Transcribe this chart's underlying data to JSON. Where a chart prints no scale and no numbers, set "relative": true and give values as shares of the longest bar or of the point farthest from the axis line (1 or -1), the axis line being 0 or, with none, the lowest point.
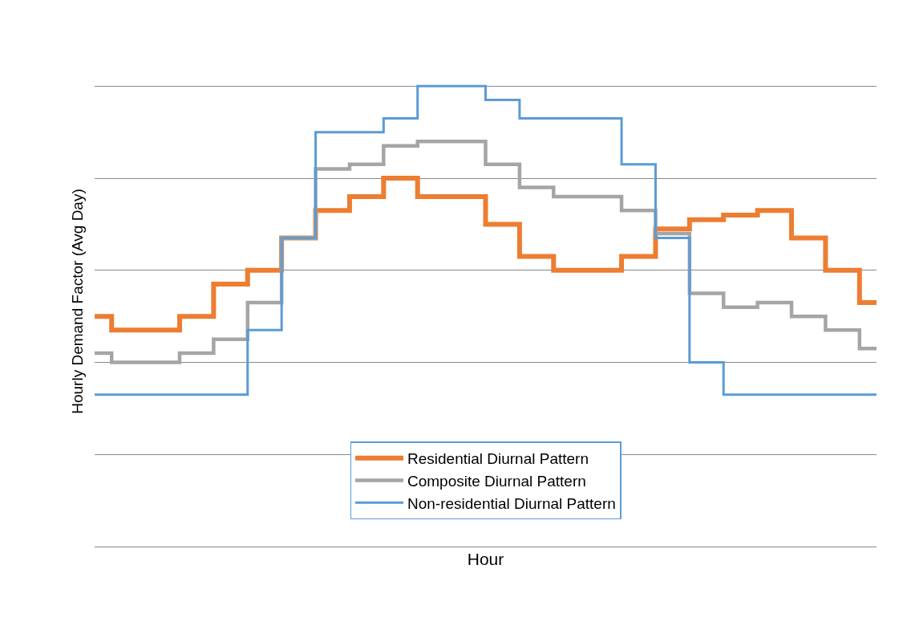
{
  "chart_data": {
    "type": "step",
    "relative": true,
    "xlabel": "Hour",
    "ylabel": "Hourly Demand Factor (Avg Day)",
    "categories": [
      null,
      null,
      null,
      null,
      null,
      null,
      null,
      null,
      null,
      null,
      null,
      null,
      null,
      null,
      null,
      null,
      null,
      null,
      null,
      null,
      null,
      null,
      null,
      null
    ],
    "series": [
      {
        "name": "Residential Diurnal Pattern",
        "color": "#ed7d31",
        "values": [
          0.5,
          0.47,
          0.47,
          0.5,
          0.57,
          0.6,
          0.67,
          0.73,
          0.76,
          0.8,
          0.76,
          0.76,
          0.7,
          0.63,
          0.6,
          0.6,
          0.63,
          0.69,
          0.71,
          0.72,
          0.73,
          0.67,
          0.6,
          0.53
        ]
      },
      {
        "name": "Composite Diurnal Pattern",
        "color": "#a5a5a5",
        "values": [
          0.42,
          0.4,
          0.4,
          0.42,
          0.45,
          0.53,
          0.67,
          0.82,
          0.83,
          0.87,
          0.88,
          0.88,
          0.83,
          0.78,
          0.76,
          0.76,
          0.73,
          0.68,
          0.55,
          0.52,
          0.53,
          0.5,
          0.47,
          0.43
        ]
      },
      {
        "name": "Non-residential Diurnal Pattern",
        "color": "#5b9bd5",
        "values": [
          0.33,
          0.33,
          0.33,
          0.33,
          0.33,
          0.47,
          0.67,
          0.9,
          0.9,
          0.93,
          1,
          1,
          0.97,
          0.93,
          0.93,
          0.93,
          0.83,
          0.67,
          0.4,
          0.33,
          0.33,
          0.33,
          0.33,
          0.33
        ]
      }
    ],
    "grid": "y",
    "legend": "bottom",
    "marker": "none",
    "line_style": "solid"
  }
}
